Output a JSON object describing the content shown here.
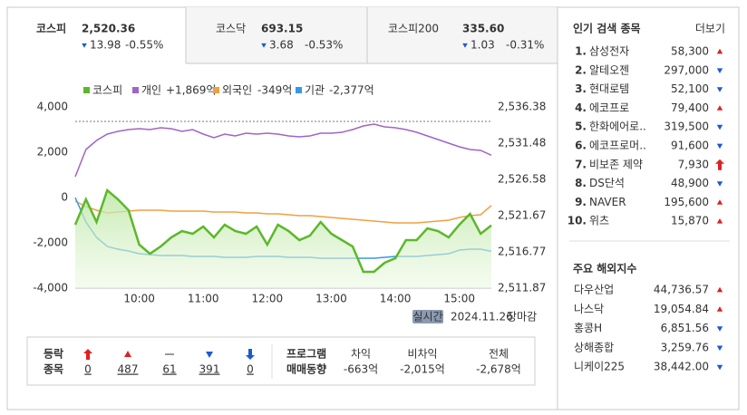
{
  "tabs": [
    {
      "name": "코스피",
      "value": "2,520.36",
      "trend": "down",
      "change": "13.98",
      "pct": "-0.55%"
    },
    {
      "name": "코스닥",
      "value": "693.15",
      "trend": "down",
      "change": "3.68",
      "pct": "-0.53%"
    },
    {
      "name": "코스피200",
      "value": "335.60",
      "trend": "down",
      "change": "1.03",
      "pct": "-0.31%"
    }
  ],
  "chart_data": {
    "type": "line",
    "x": [
      "09:00",
      "09:10",
      "09:20",
      "09:30",
      "09:40",
      "09:50",
      "10:00",
      "10:10",
      "10:20",
      "10:30",
      "10:40",
      "10:50",
      "11:00",
      "11:10",
      "11:20",
      "11:30",
      "11:40",
      "11:50",
      "12:00",
      "12:10",
      "12:20",
      "12:30",
      "12:40",
      "12:50",
      "13:00",
      "13:10",
      "13:20",
      "13:30",
      "13:40",
      "13:50",
      "14:00",
      "14:10",
      "14:20",
      "14:30",
      "14:40",
      "14:50",
      "15:00",
      "15:10",
      "15:20",
      "15:30"
    ],
    "xlim": [
      "09:00",
      "15:30"
    ],
    "xticks": [
      "10:00",
      "11:00",
      "12:00",
      "13:00",
      "14:00",
      "15:00"
    ],
    "series": [
      {
        "name": "코스피",
        "color": "#5cb82a",
        "axis": "y2",
        "area": true,
        "values": [
          2520.45,
          2523.88,
          2520.82,
          2525.11,
          2523.88,
          2522.41,
          2517.75,
          2516.53,
          2517.51,
          2518.73,
          2519.59,
          2519.22,
          2520.2,
          2518.73,
          2520.45,
          2519.59,
          2519.22,
          2520.2,
          2517.75,
          2520.45,
          2519.59,
          2518.37,
          2518.98,
          2520.82,
          2519.22,
          2518.37,
          2517.51,
          2514.08,
          2514.08,
          2515.3,
          2515.91,
          2518.37,
          2518.37,
          2519.96,
          2519.59,
          2518.73,
          2520.45,
          2521.92,
          2519.22,
          2520.36
        ]
      },
      {
        "name": "개인",
        "total": "+1,869억",
        "total_color": "#e02020",
        "color": "#a064c8",
        "values": [
          920,
          2120,
          2520,
          2800,
          2920,
          3000,
          3040,
          3000,
          3080,
          3040,
          2920,
          3000,
          2800,
          2640,
          2800,
          2720,
          2840,
          2800,
          2840,
          2800,
          2720,
          2680,
          2720,
          2840,
          2840,
          2880,
          3000,
          3160,
          3240,
          3120,
          3080,
          3000,
          2880,
          2720,
          2560,
          2400,
          2240,
          2120,
          2080,
          1869
        ]
      },
      {
        "name": "외국인",
        "total": "-349억",
        "total_color": "#1a5bd0",
        "color": "#f0a040",
        "values": [
          -160,
          -400,
          -560,
          -680,
          -640,
          -600,
          -560,
          -560,
          -560,
          -600,
          -600,
          -600,
          -600,
          -640,
          -640,
          -640,
          -680,
          -680,
          -720,
          -720,
          -760,
          -800,
          -800,
          -840,
          -880,
          -920,
          -960,
          -1000,
          -1040,
          -1080,
          -1120,
          -1120,
          -1120,
          -1080,
          -1040,
          -1000,
          -880,
          -800,
          -760,
          -349
        ]
      },
      {
        "name": "기관",
        "total": "-2,377억",
        "total_color": "#1a5bd0",
        "color": "#3399e8",
        "values": [
          0,
          -1080,
          -1760,
          -2160,
          -2280,
          -2360,
          -2480,
          -2520,
          -2560,
          -2560,
          -2560,
          -2600,
          -2600,
          -2600,
          -2640,
          -2640,
          -2640,
          -2600,
          -2600,
          -2600,
          -2640,
          -2640,
          -2640,
          -2680,
          -2680,
          -2680,
          -2680,
          -2680,
          -2680,
          -2640,
          -2600,
          -2600,
          -2600,
          -2560,
          -2520,
          -2480,
          -2320,
          -2280,
          -2280,
          -2377
        ]
      }
    ],
    "ylim": [
      -4000,
      4000
    ],
    "yticks": [
      {
        "value": 4000,
        "label": "4,000"
      },
      {
        "value": 2000,
        "label": "2,000"
      },
      0,
      {
        "value": -2000,
        "label": "-2,000"
      },
      {
        "value": -4000,
        "label": "-4,000"
      }
    ],
    "y2lim": [
      2511.87,
      2536.38
    ],
    "y2ticks": [
      {
        "value": 2536.38,
        "label": "2,536.38"
      },
      {
        "value": 2531.48,
        "label": "2,531.48"
      },
      {
        "value": 2526.58,
        "label": "2,526.58"
      },
      {
        "value": 2521.67,
        "label": "2,521.67"
      },
      {
        "value": 2516.77,
        "label": "2,516.77"
      },
      {
        "value": 2511.87,
        "label": "2,511.87"
      }
    ],
    "badge": "실시간",
    "date": "2024.11.26",
    "status": "장마감"
  },
  "breadth": {
    "label": [
      "등락",
      "종목"
    ],
    "items": [
      {
        "trend": "upper",
        "count": 0
      },
      {
        "trend": "up",
        "count": 487
      },
      {
        "trend": "flat",
        "count": 61
      },
      {
        "trend": "down",
        "count": 391
      },
      {
        "trend": "lower",
        "count": 0
      }
    ]
  },
  "program": {
    "label": [
      "프로그램",
      "매매동향"
    ],
    "items": [
      {
        "label": "차익",
        "value": "-663억"
      },
      {
        "label": "비차익",
        "value": "-2,015억"
      },
      {
        "label": "전체",
        "value": "-2,678억"
      }
    ]
  },
  "popular": {
    "title": "인기 검색 종목",
    "more": "더보기",
    "rows": [
      {
        "rank": "1.",
        "name": "삼성전자",
        "price": "58,300",
        "trend": "up"
      },
      {
        "rank": "2.",
        "name": "알테오젠",
        "price": "297,000",
        "trend": "down"
      },
      {
        "rank": "3.",
        "name": "현대로템",
        "price": "52,100",
        "trend": "down"
      },
      {
        "rank": "4.",
        "name": "에코프로",
        "price": "79,400",
        "trend": "up"
      },
      {
        "rank": "5.",
        "name": "한화에어로..",
        "price": "319,500",
        "trend": "down"
      },
      {
        "rank": "6.",
        "name": "에코프로머..",
        "price": "91,600",
        "trend": "down"
      },
      {
        "rank": "7.",
        "name": "비보존 제약",
        "price": "7,930",
        "trend": "upper"
      },
      {
        "rank": "8.",
        "name": "DS단석",
        "price": "48,900",
        "trend": "down"
      },
      {
        "rank": "9.",
        "name": "NAVER",
        "price": "195,600",
        "trend": "up"
      },
      {
        "rank": "10.",
        "name": "위츠",
        "price": "15,870",
        "trend": "up"
      }
    ]
  },
  "world": {
    "title": "주요 해외지수",
    "rows": [
      {
        "name": "다우산업",
        "value": "44,736.57",
        "trend": "up"
      },
      {
        "name": "나스닥",
        "value": "19,054.84",
        "trend": "up"
      },
      {
        "name": "홍콩H",
        "value": "6,851.56",
        "trend": "down"
      },
      {
        "name": "상해종합",
        "value": "3,259.76",
        "trend": "down"
      },
      {
        "name": "니케이225",
        "value": "38,442.00",
        "trend": "down"
      }
    ]
  }
}
